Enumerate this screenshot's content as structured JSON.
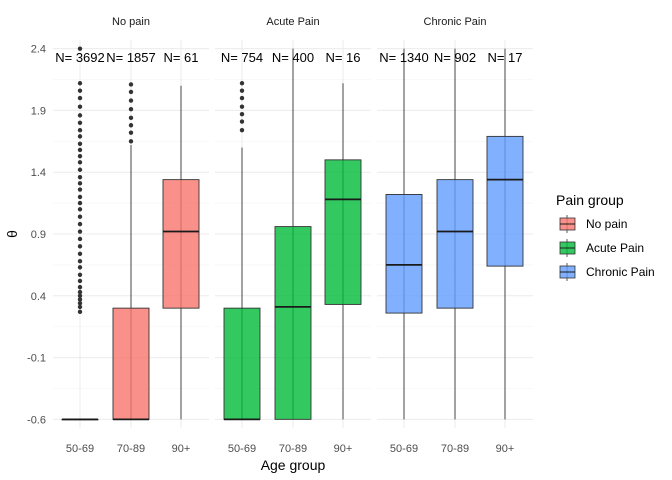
{
  "chart_data": {
    "type": "boxplot",
    "xlabel": "Age group",
    "ylabel": "θ",
    "ylim": [
      -0.67,
      2.47
    ],
    "yticks": [
      -0.6,
      -0.1,
      0.4,
      0.9,
      1.4,
      1.9,
      2.4
    ],
    "ytick_labels": [
      "-0.6",
      "-0.1",
      "0.4",
      "0.9",
      "1.4",
      "1.9",
      "2.4"
    ],
    "categories": [
      "50-69",
      "70-89",
      "90+"
    ],
    "legend": {
      "title": "Pain group",
      "position": "right",
      "entries": [
        {
          "label": "No pain",
          "color": "#f8766d"
        },
        {
          "label": "Acute Pain",
          "color": "#00ba38"
        },
        {
          "label": "Chronic Pain",
          "color": "#619cff"
        }
      ]
    },
    "panels": [
      {
        "title": "No pain",
        "color": "#f8766d",
        "boxes": [
          {
            "category": "50-69",
            "n_label": "N= 3692",
            "lower": -0.6,
            "q1": -0.6,
            "median": -0.6,
            "q3": -0.6,
            "upper": -0.6,
            "outliers": [
              0.27,
              0.31,
              0.34,
              0.37,
              0.4,
              0.43,
              0.47,
              0.52,
              0.57,
              0.63,
              0.68,
              0.74,
              0.8,
              0.86,
              0.92,
              0.98,
              1.04,
              1.1,
              1.15,
              1.2,
              1.26,
              1.31,
              1.36,
              1.42,
              1.48,
              1.53,
              1.58,
              1.63,
              1.69,
              1.74,
              1.8,
              1.86,
              1.93,
              2.0,
              2.06,
              2.12,
              2.4
            ]
          },
          {
            "category": "70-89",
            "n_label": "N= 1857",
            "lower": -0.6,
            "q1": -0.6,
            "median": -0.6,
            "q3": 0.3,
            "upper": 1.62,
            "outliers": [
              1.65,
              1.72,
              1.78,
              1.84,
              1.91,
              1.98,
              2.05,
              2.11
            ]
          },
          {
            "category": "90+",
            "n_label": "N= 61",
            "lower": -0.6,
            "q1": 0.3,
            "median": 0.92,
            "q3": 1.34,
            "upper": 2.1,
            "outliers": []
          }
        ]
      },
      {
        "title": "Acute Pain",
        "color": "#00ba38",
        "boxes": [
          {
            "category": "50-69",
            "n_label": "N= 754",
            "lower": -0.6,
            "q1": -0.6,
            "median": -0.6,
            "q3": 0.3,
            "upper": 1.6,
            "outliers": [
              1.74,
              1.81,
              1.87,
              1.93,
              2.0,
              2.06,
              2.12
            ]
          },
          {
            "category": "70-89",
            "n_label": "N= 400",
            "lower": -0.6,
            "q1": -0.6,
            "median": 0.31,
            "q3": 0.96,
            "upper": 2.4,
            "outliers": []
          },
          {
            "category": "90+",
            "n_label": "N= 16",
            "lower": -0.6,
            "q1": 0.33,
            "median": 1.18,
            "q3": 1.5,
            "upper": 2.12,
            "outliers": []
          }
        ]
      },
      {
        "title": "Chronic Pain",
        "color": "#619cff",
        "boxes": [
          {
            "category": "50-69",
            "n_label": "N= 1340",
            "lower": -0.6,
            "q1": 0.26,
            "median": 0.65,
            "q3": 1.22,
            "upper": 2.4,
            "outliers": []
          },
          {
            "category": "70-89",
            "n_label": "N= 902",
            "lower": -0.6,
            "q1": 0.3,
            "median": 0.92,
            "q3": 1.34,
            "upper": 2.4,
            "outliers": []
          },
          {
            "category": "90+",
            "n_label": "N= 17",
            "lower": -0.6,
            "q1": 0.64,
            "median": 1.34,
            "q3": 1.69,
            "upper": 2.4,
            "outliers": []
          }
        ]
      }
    ]
  }
}
